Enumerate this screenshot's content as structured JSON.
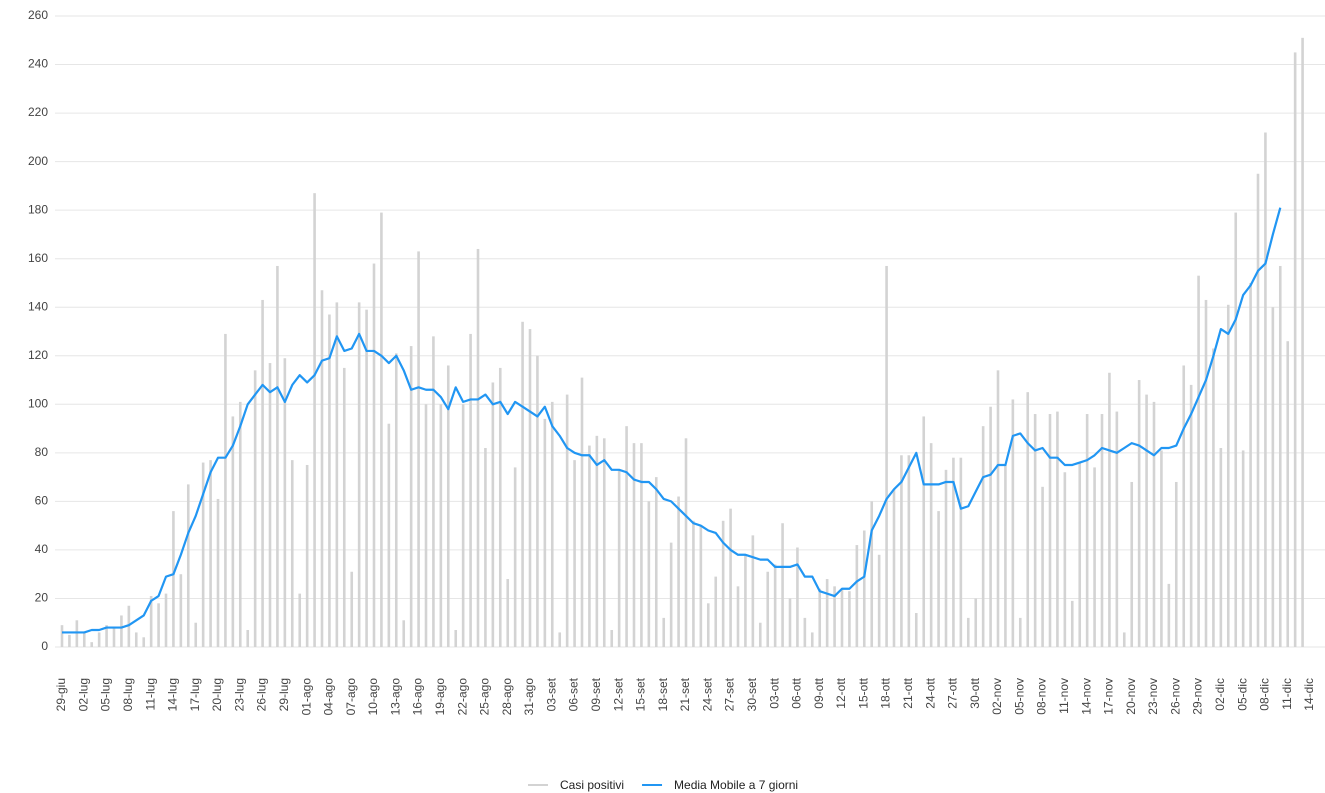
{
  "chart_data": {
    "type": "combo",
    "categories": [
      "29-giu",
      null,
      null,
      "02-lug",
      null,
      null,
      "05-lug",
      null,
      null,
      "08-lug",
      null,
      null,
      "11-lug",
      null,
      null,
      "14-lug",
      null,
      null,
      "17-lug",
      null,
      null,
      "20-lug",
      null,
      null,
      "23-lug",
      null,
      null,
      "26-lug",
      null,
      null,
      "29-lug",
      null,
      null,
      "01-ago",
      null,
      null,
      "04-ago",
      null,
      null,
      "07-ago",
      null,
      null,
      "10-ago",
      null,
      null,
      "13-ago",
      null,
      null,
      "16-ago",
      null,
      null,
      "19-ago",
      null,
      null,
      "22-ago",
      null,
      null,
      "25-ago",
      null,
      null,
      "28-ago",
      null,
      null,
      "31-ago",
      null,
      null,
      "03-set",
      null,
      null,
      "06-set",
      null,
      null,
      "09-set",
      null,
      null,
      "12-set",
      null,
      null,
      "15-set",
      null,
      null,
      "18-set",
      null,
      null,
      "21-set",
      null,
      null,
      "24-set",
      null,
      null,
      "27-set",
      null,
      null,
      "30-set",
      null,
      null,
      "03-ott",
      null,
      null,
      "06-ott",
      null,
      null,
      "09-ott",
      null,
      null,
      "12-ott",
      null,
      null,
      "15-ott",
      null,
      null,
      "18-ott",
      null,
      null,
      "21-ott",
      null,
      null,
      "24-ott",
      null,
      null,
      "27-ott",
      null,
      null,
      "30-ott",
      null,
      null,
      "02-nov",
      null,
      null,
      "05-nov",
      null,
      null,
      "08-nov",
      null,
      null,
      "11-nov",
      null,
      null,
      "14-nov",
      null,
      null,
      "17-nov",
      null,
      null,
      "20-nov",
      null,
      null,
      "23-nov",
      null,
      null,
      "26-nov",
      null,
      null,
      "29-nov",
      null,
      null,
      "02-dic",
      null,
      null,
      "05-dic",
      null,
      null,
      "08-dic",
      null,
      null,
      "11-dic",
      null,
      null,
      "14-dic"
    ],
    "series": [
      {
        "name": "Casi positivi",
        "type": "bar",
        "color": "#d3d3d3",
        "values": [
          9,
          5,
          11,
          6,
          2,
          6,
          9,
          8,
          13,
          17,
          6,
          4,
          21,
          18,
          22,
          56,
          30,
          67,
          10,
          76,
          77,
          61,
          129,
          95,
          101,
          7,
          114,
          143,
          117,
          157,
          119,
          77,
          22,
          75,
          187,
          147,
          137,
          142,
          115,
          31,
          142,
          139,
          158,
          179,
          92,
          121,
          11,
          124,
          163,
          100,
          128,
          100,
          116,
          7,
          100,
          129,
          164,
          82,
          109,
          115,
          28,
          74,
          134,
          131,
          120,
          94,
          101,
          6,
          104,
          77,
          111,
          83,
          87,
          86,
          7,
          73,
          91,
          84,
          84,
          60,
          70,
          12,
          43,
          62,
          86,
          52,
          50,
          18,
          29,
          52,
          57,
          25,
          38,
          46,
          10,
          31,
          34,
          51,
          20,
          41,
          12,
          6,
          24,
          28,
          25,
          24,
          23,
          42,
          48,
          60,
          38,
          157,
          65,
          79,
          79,
          14,
          95,
          84,
          56,
          73,
          78,
          78,
          12,
          20,
          91,
          99,
          114,
          75,
          102,
          12,
          105,
          96,
          66,
          96,
          97,
          72,
          19,
          76,
          96,
          74,
          96,
          113,
          97,
          6,
          68,
          110,
          104,
          101,
          81,
          26,
          68,
          116,
          108,
          153,
          143,
          123,
          82,
          141,
          179,
          81,
          150,
          195,
          212,
          140,
          157,
          126,
          245,
          251,
          null
        ]
      },
      {
        "name": "Media Mobile a 7 giorni",
        "type": "line",
        "color": "#2196f3",
        "values": [
          6,
          6,
          6,
          6,
          7,
          7,
          8,
          8,
          8,
          9,
          11,
          13,
          19,
          21,
          29,
          30,
          38,
          47,
          54,
          63,
          72,
          78,
          78,
          83,
          91,
          100,
          104,
          108,
          105,
          107,
          101,
          108,
          112,
          109,
          112,
          118,
          119,
          128,
          122,
          123,
          129,
          122,
          122,
          120,
          117,
          120,
          114,
          106,
          107,
          106,
          106,
          103,
          98,
          107,
          101,
          102,
          102,
          104,
          100,
          101,
          96,
          101,
          99,
          97,
          95,
          99,
          91,
          87,
          82,
          80,
          79,
          79,
          75,
          77,
          73,
          73,
          72,
          69,
          68,
          68,
          65,
          61,
          60,
          57,
          54,
          51,
          50,
          48,
          47,
          43,
          40,
          38,
          38,
          37,
          36,
          36,
          33,
          33,
          33,
          34,
          29,
          29,
          23,
          22,
          21,
          24,
          24,
          27,
          29,
          48,
          54,
          61,
          65,
          68,
          74,
          80,
          67,
          67,
          67,
          68,
          68,
          57,
          58,
          64,
          70,
          71,
          75,
          75,
          87,
          88,
          84,
          81,
          82,
          78,
          78,
          75,
          75,
          76,
          77,
          79,
          82,
          81,
          80,
          82,
          84,
          83,
          81,
          79,
          82,
          82,
          83,
          90,
          96,
          103,
          110,
          120,
          131,
          129,
          135,
          145,
          149,
          155,
          158,
          170,
          181,
          null,
          null,
          null,
          null
        ]
      }
    ],
    "ylim": [
      0,
      260
    ],
    "yticks": [
      0,
      20,
      40,
      60,
      80,
      100,
      120,
      140,
      160,
      180,
      200,
      220,
      240,
      260
    ],
    "grid": true,
    "legend": "bottom"
  }
}
